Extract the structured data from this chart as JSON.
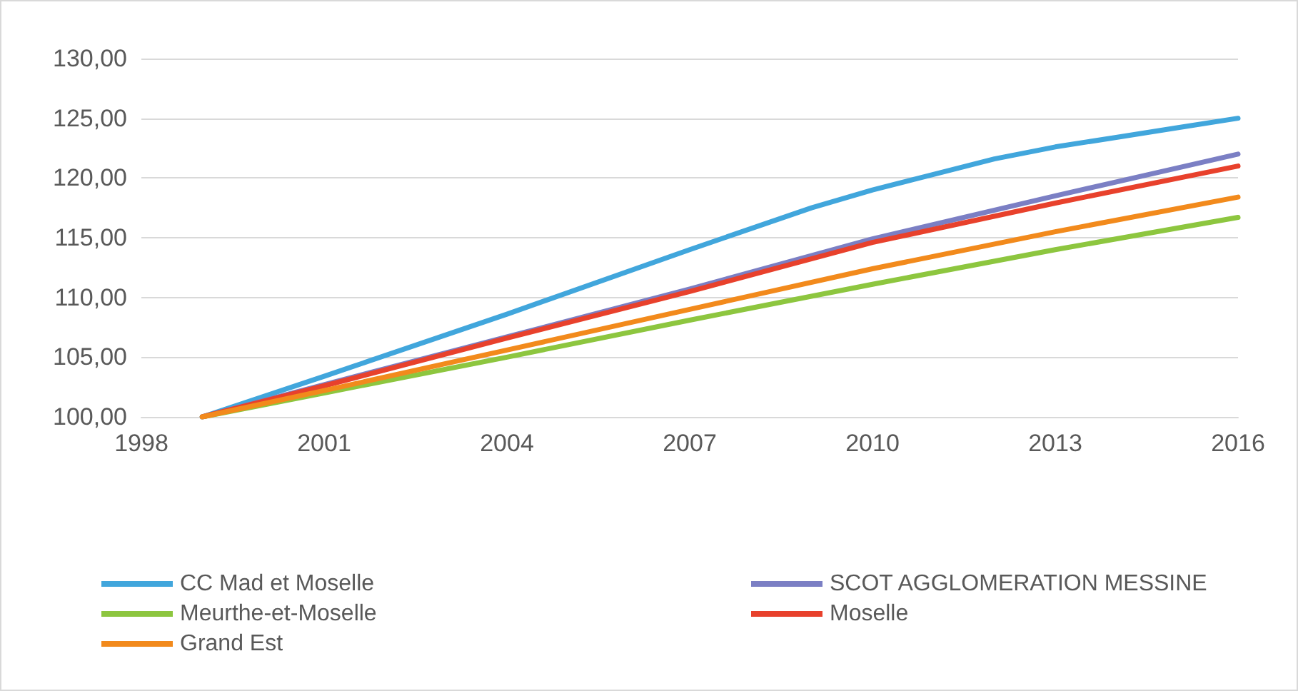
{
  "chart_data": {
    "type": "line",
    "x": [
      1999,
      2001,
      2004,
      2007,
      2010,
      2013,
      2016
    ],
    "series": [
      {
        "name": "CC Mad et Moselle",
        "color": "#41a6dc",
        "x": [
          1999,
          2001,
          2004,
          2007,
          2009,
          2010,
          2011,
          2012,
          2013,
          2014,
          2015,
          2016
        ],
        "values": [
          100,
          103.4,
          108.6,
          114.0,
          117.5,
          119.0,
          120.3,
          121.6,
          122.6,
          123.4,
          124.2,
          125.0
        ]
      },
      {
        "name": "SCOT AGGLOMERATION MESSINE",
        "color": "#7b7fc4",
        "values": [
          100,
          102.7,
          106.7,
          110.7,
          114.9,
          118.5,
          122.0
        ]
      },
      {
        "name": "Meurthe-et-Moselle",
        "color": "#8dc63f",
        "values": [
          100,
          102.0,
          105.0,
          108.1,
          111.1,
          114.0,
          116.7
        ]
      },
      {
        "name": "Moselle",
        "color": "#e8412c",
        "values": [
          100,
          102.6,
          106.6,
          110.5,
          114.6,
          117.9,
          121.0
        ]
      },
      {
        "name": "Grand Est",
        "color": "#f28a1c",
        "values": [
          100,
          102.2,
          105.6,
          109.0,
          112.4,
          115.5,
          118.4
        ]
      }
    ],
    "xlim": [
      1998,
      2016
    ],
    "xticks": [
      1998,
      2001,
      2004,
      2007,
      2010,
      2013,
      2016
    ],
    "ylim": [
      100,
      130
    ],
    "yticks": [
      {
        "value": 100,
        "label": "100,00"
      },
      {
        "value": 105,
        "label": "105,00"
      },
      {
        "value": 110,
        "label": "110,00"
      },
      {
        "value": 115,
        "label": "115,00"
      },
      {
        "value": 120,
        "label": "120,00"
      },
      {
        "value": 125,
        "label": "125,00"
      },
      {
        "value": 130,
        "label": "130,00"
      }
    ],
    "grid": "y",
    "legend": "bottom",
    "marker": "none",
    "line_style": "solid"
  }
}
